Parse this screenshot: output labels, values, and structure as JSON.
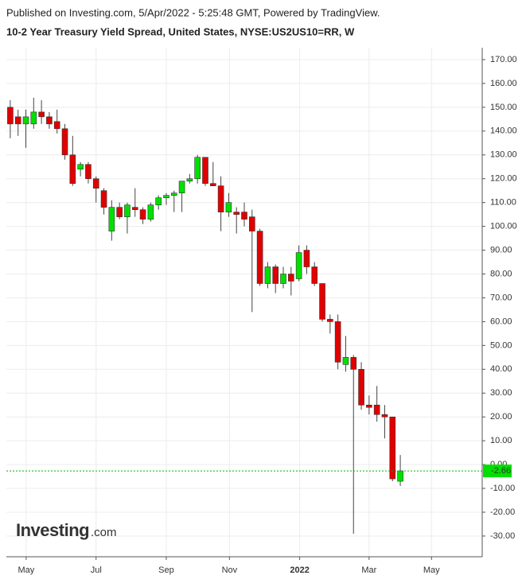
{
  "header": {
    "published": "Published on Investing.com, 5/Apr/2022 - 5:25:48 GMT, Powered by TradingView.",
    "title": "10-2 Year Treasury Yield Spread, United States, NYSE:US2US10=RR, W"
  },
  "logo": {
    "brand": "Investing",
    "suffix": ".com"
  },
  "chart_data": {
    "type": "candlestick",
    "x": [
      0,
      1,
      2,
      3,
      4,
      5,
      6,
      7,
      8,
      9,
      10,
      11,
      12,
      13,
      14,
      15,
      16,
      17,
      18,
      19,
      20,
      21,
      22,
      23,
      24,
      25,
      26,
      27,
      28,
      29,
      30,
      31,
      32,
      33,
      34,
      35,
      36,
      37,
      38,
      39,
      40,
      41,
      42,
      43,
      44,
      45,
      46,
      47,
      48,
      49,
      50
    ],
    "open": [
      150,
      146,
      143,
      143,
      148,
      146,
      144,
      141,
      130,
      124,
      126,
      120,
      115,
      98,
      108,
      104,
      108,
      107,
      103,
      109,
      112,
      113,
      114,
      119,
      120,
      129,
      118,
      117,
      106,
      106,
      106,
      104,
      98,
      76,
      83,
      76,
      80,
      78,
      90,
      83,
      76,
      61,
      60,
      42,
      45,
      40,
      25,
      25,
      21,
      20,
      -7
    ],
    "high": [
      153,
      149,
      149,
      154,
      153,
      148,
      149,
      143,
      138,
      127,
      127,
      121,
      116,
      111,
      110,
      110,
      116,
      108,
      110,
      113,
      114,
      115,
      119,
      122,
      130,
      129,
      127,
      121,
      114,
      108,
      110,
      107,
      99,
      85,
      84,
      83,
      83,
      92,
      92,
      85,
      76,
      63,
      63,
      54,
      46,
      43,
      29,
      33,
      25,
      20,
      4
    ],
    "low": [
      137,
      138,
      133,
      141,
      143,
      141,
      139,
      128,
      117,
      121,
      118,
      110,
      105,
      94,
      103,
      97,
      104,
      101,
      102,
      107,
      109,
      106,
      106,
      118,
      118,
      117,
      117,
      98,
      104,
      97,
      100,
      64,
      75,
      74,
      72,
      74,
      71,
      77,
      80,
      75,
      60,
      55,
      40,
      39,
      -29,
      23,
      21,
      18,
      11,
      -7,
      -9
    ],
    "close": [
      143,
      143,
      146,
      148,
      146,
      143,
      141,
      130,
      118,
      126,
      120,
      116,
      108,
      108,
      104,
      109,
      107,
      103,
      109,
      112,
      113,
      114,
      119,
      120,
      129,
      118,
      117,
      106,
      110,
      105,
      103,
      98,
      76,
      83,
      76,
      80,
      77,
      89,
      83,
      76,
      61,
      60,
      43,
      45,
      40,
      25,
      24,
      21,
      20,
      -6,
      -2.66
    ],
    "up_color": "#00e000",
    "down_color": "#e00000",
    "last_line_color": "#00b400",
    "xlim": [
      -0.5,
      60.5
    ],
    "xticks": [
      {
        "value": 2.04,
        "label": "May"
      },
      {
        "value": 11.0,
        "label": "Jul"
      },
      {
        "value": 20.0,
        "label": "Sep"
      },
      {
        "value": 28.1,
        "label": "Nov"
      },
      {
        "value": 37.1,
        "label": "2022"
      },
      {
        "value": 46.0,
        "label": "Mar"
      },
      {
        "value": 54.0,
        "label": "May"
      }
    ],
    "ylim": [
      -38.7,
      175
    ],
    "yticks": [
      {
        "value": 170,
        "label": "170.00"
      },
      {
        "value": 160,
        "label": "160.00"
      },
      {
        "value": 150,
        "label": "150.00"
      },
      {
        "value": 140,
        "label": "140.00"
      },
      {
        "value": 130,
        "label": "130.00"
      },
      {
        "value": 120,
        "label": "120.00"
      },
      {
        "value": 110,
        "label": "110.00"
      },
      {
        "value": 100,
        "label": "100.00"
      },
      {
        "value": 90,
        "label": "90.00"
      },
      {
        "value": 80,
        "label": "80.00"
      },
      {
        "value": 70,
        "label": "70.00"
      },
      {
        "value": 60,
        "label": "60.00"
      },
      {
        "value": 50,
        "label": "50.00"
      },
      {
        "value": 40,
        "label": "40.00"
      },
      {
        "value": 30,
        "label": "30.00"
      },
      {
        "value": 20,
        "label": "20.00"
      },
      {
        "value": 10,
        "label": "10.00"
      },
      {
        "value": 0,
        "label": "0.00"
      },
      {
        "value": -10,
        "label": "-10.00"
      },
      {
        "value": -20,
        "label": "-20.00"
      },
      {
        "value": -30,
        "label": "-30.00"
      }
    ],
    "grid": true
  }
}
